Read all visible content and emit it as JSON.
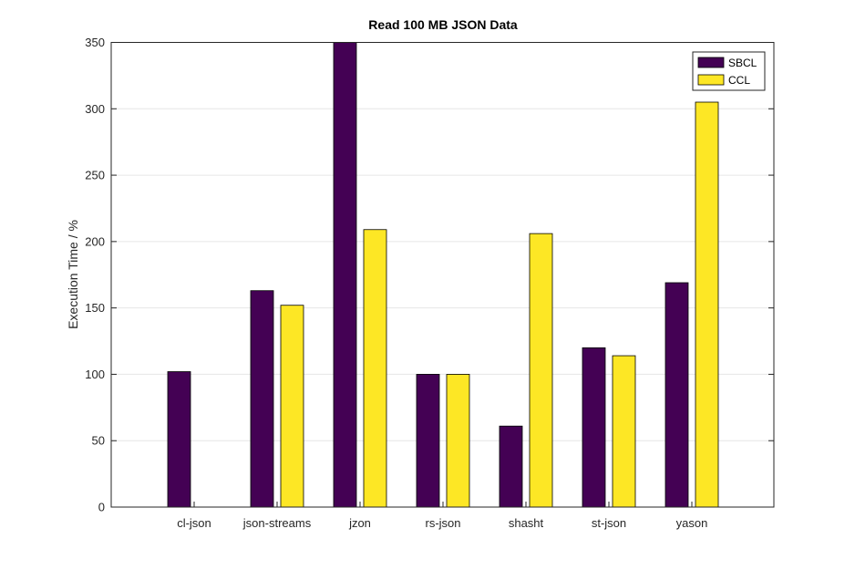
{
  "chart_data": {
    "type": "bar",
    "title": "Read 100 MB JSON Data",
    "xlabel": "",
    "ylabel": "Execution Time / %",
    "ylim": [
      0,
      350
    ],
    "yticks": [
      0,
      50,
      100,
      150,
      200,
      250,
      300,
      350
    ],
    "grid": true,
    "legend_position": "top-right",
    "categories": [
      "cl-json",
      "json-streams",
      "jzon",
      "rs-json",
      "shasht",
      "st-json",
      "yason"
    ],
    "series": [
      {
        "name": "SBCL",
        "color": "#440154",
        "values": [
          102,
          163,
          350,
          100,
          61,
          120,
          169
        ]
      },
      {
        "name": "CCL",
        "color": "#fde725",
        "values": [
          null,
          152,
          209,
          100,
          206,
          114,
          305
        ]
      }
    ]
  }
}
